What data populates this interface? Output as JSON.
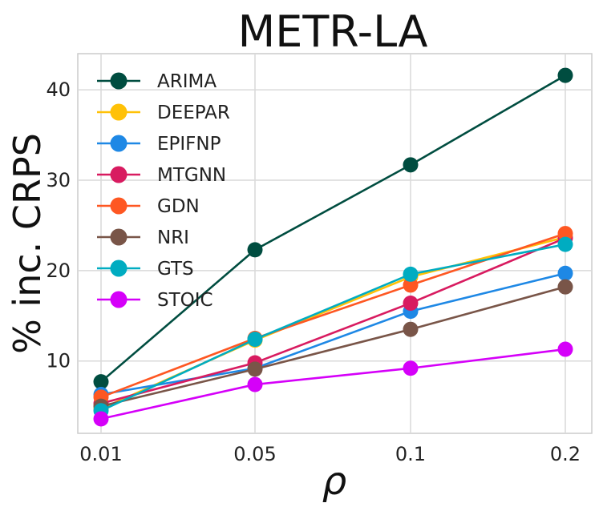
{
  "chart_data": {
    "type": "line",
    "title": "METR-LA",
    "xlabel": "ρ",
    "ylabel": "% inc. CRPS",
    "categories": [
      "0.01",
      "0.05",
      "0.1",
      "0.2"
    ],
    "yticks": [
      "10",
      "20",
      "30",
      "40"
    ],
    "ylim": [
      2,
      44
    ],
    "grid": true,
    "legend_position": "top-left",
    "series": [
      {
        "name": "ARIMA",
        "color": "#004d40",
        "values": [
          7.7,
          22.3,
          31.7,
          41.6
        ]
      },
      {
        "name": "DEEPAR",
        "color": "#ffc107",
        "values": [
          4.7,
          12.3,
          19.3,
          23.7
        ]
      },
      {
        "name": "EPIFNP",
        "color": "#1e88e5",
        "values": [
          6.3,
          9.2,
          15.5,
          19.7
        ]
      },
      {
        "name": "MTGNN",
        "color": "#d81b60",
        "values": [
          5.3,
          9.8,
          16.4,
          23.6
        ]
      },
      {
        "name": "GDN",
        "color": "#fe5722",
        "values": [
          6.0,
          12.5,
          18.4,
          24.1
        ]
      },
      {
        "name": "NRI",
        "color": "#795548",
        "values": [
          5.0,
          9.1,
          13.5,
          18.2
        ]
      },
      {
        "name": "GTS",
        "color": "#00acc1",
        "values": [
          4.5,
          12.4,
          19.6,
          22.9
        ]
      },
      {
        "name": "STOIC",
        "color": "#d500f9",
        "values": [
          3.6,
          7.4,
          9.2,
          11.3
        ]
      }
    ]
  }
}
